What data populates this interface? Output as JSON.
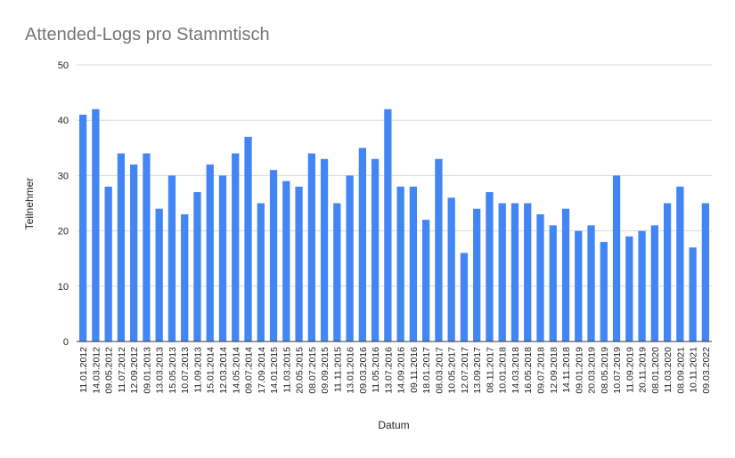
{
  "chart_data": {
    "type": "bar",
    "title": "Attended-Logs pro Stammtisch",
    "xlabel": "Datum",
    "ylabel": "Teilnehmer",
    "ylim": [
      0,
      50
    ],
    "yticks": [
      0,
      10,
      20,
      30,
      40,
      50
    ],
    "grid": true,
    "legend": "none",
    "categories": [
      "11.01.2012",
      "14.03.2012",
      "09.05.2012",
      "11.07.2012",
      "12.09.2012",
      "09.01.2013",
      "13.03.2013",
      "15.05.2013",
      "10.07.2013",
      "11.09.2013",
      "15.01.2014",
      "12.03.2014",
      "14.05.2014",
      "09.07.2014",
      "17.09.2014",
      "14.01.2015",
      "11.03.2015",
      "20.05.2015",
      "08.07.2015",
      "09.09.2015",
      "11.11.2015",
      "13.01.2016",
      "09.03.2016",
      "11.05.2016",
      "13.07.2016",
      "14.09.2016",
      "09.11.2016",
      "18.01.2017",
      "08.03.2017",
      "10.05.2017",
      "12.07.2017",
      "13.09.2017",
      "08.11.2017",
      "10.01.2018",
      "14.03.2018",
      "16.05.2018",
      "09.07.2018",
      "12.09.2018",
      "14.11.2018",
      "09.01.2019",
      "20.03.2019",
      "08.05.2019",
      "10.07.2019",
      "11.09.2019",
      "20.11.2019",
      "08.01.2020",
      "11.03.2020",
      "08.09.2021",
      "10.11.2021",
      "09.03.2022"
    ],
    "values": [
      41,
      42,
      28,
      34,
      32,
      34,
      24,
      30,
      23,
      27,
      32,
      30,
      34,
      37,
      25,
      31,
      29,
      28,
      34,
      33,
      25,
      30,
      35,
      33,
      42,
      28,
      28,
      22,
      33,
      26,
      16,
      24,
      27,
      25,
      25,
      25,
      23,
      21,
      24,
      20,
      21,
      18,
      30,
      19,
      20,
      21,
      25,
      28,
      17,
      25
    ]
  },
  "colors": {
    "bar": "#4285F4",
    "grid": "#D9D9D9",
    "axis": "#333333",
    "title": "#757575",
    "text": "#222222"
  }
}
